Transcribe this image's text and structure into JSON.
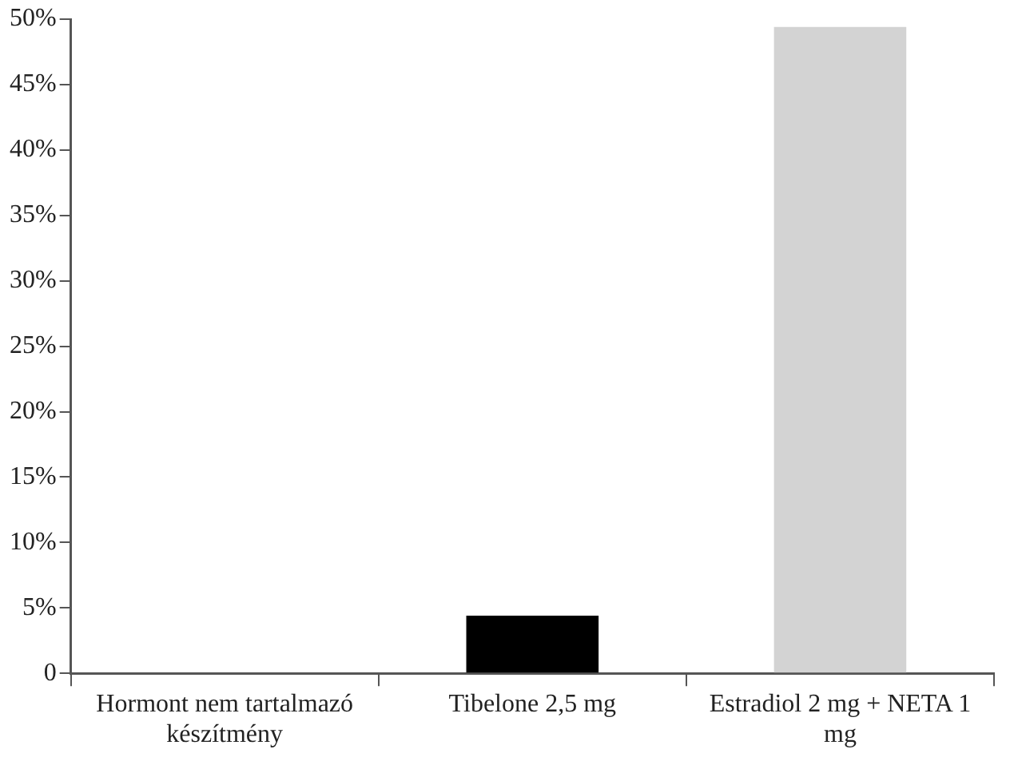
{
  "chart_data": {
    "type": "bar",
    "categories": [
      "Hormont nem tartalmazó készítmény",
      "Tibelone 2,5 mg",
      "Estradiol 2 mg + NETA 1 mg"
    ],
    "values": [
      0,
      4.4,
      49.4
    ],
    "colors": [
      "#000000",
      "#000000",
      "#d3d3d3"
    ],
    "ylim": [
      0,
      50
    ],
    "yticks": [
      {
        "value": 0,
        "label": "0"
      },
      {
        "value": 5,
        "label": "5%"
      },
      {
        "value": 10,
        "label": "10%"
      },
      {
        "value": 15,
        "label": "15%"
      },
      {
        "value": 20,
        "label": "20%"
      },
      {
        "value": 25,
        "label": "25%"
      },
      {
        "value": 30,
        "label": "30%"
      },
      {
        "value": 35,
        "label": "35%"
      },
      {
        "value": 40,
        "label": "40%"
      },
      {
        "value": 45,
        "label": "45%"
      },
      {
        "value": 50,
        "label": "50%"
      }
    ],
    "grid": false,
    "legend": false
  }
}
